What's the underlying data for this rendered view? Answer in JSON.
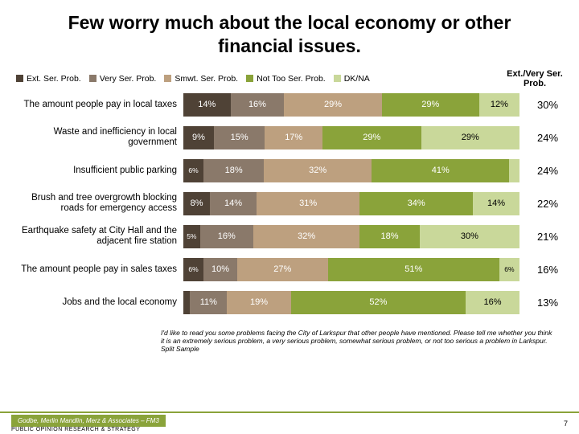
{
  "title": "Few worry much about the local economy or other financial issues.",
  "legend": [
    {
      "label": "Ext. Ser. Prob.",
      "color": "#4f4236"
    },
    {
      "label": "Very Ser. Prob.",
      "color": "#8a796a"
    },
    {
      "label": "Smwt. Ser. Prob.",
      "color": "#bda07f"
    },
    {
      "label": "Not Too Ser. Prob.",
      "color": "#8aa33a"
    },
    {
      "label": "DK/NA",
      "color": "#c9d89a"
    }
  ],
  "summary_header": "Ext./Very Ser. Prob.",
  "rows": [
    {
      "label": "The amount people pay in local taxes",
      "segments": [
        {
          "value": 14,
          "text": "14%",
          "color": "#4f4236",
          "show": true
        },
        {
          "value": 16,
          "text": "16%",
          "color": "#8a796a",
          "show": true
        },
        {
          "value": 29,
          "text": "29%",
          "color": "#bda07f",
          "show": true
        },
        {
          "value": 29,
          "text": "29%",
          "color": "#8aa33a",
          "show": true
        },
        {
          "value": 12,
          "text": "12%",
          "color": "#c9d89a",
          "show": true,
          "dark": true
        }
      ],
      "summary": "30%"
    },
    {
      "label": "Waste and inefficiency in local government",
      "segments": [
        {
          "value": 9,
          "text": "9%",
          "color": "#4f4236",
          "show": true
        },
        {
          "value": 15,
          "text": "15%",
          "color": "#8a796a",
          "show": true
        },
        {
          "value": 17,
          "text": "17%",
          "color": "#bda07f",
          "show": true
        },
        {
          "value": 29,
          "text": "29%",
          "color": "#8aa33a",
          "show": true
        },
        {
          "value": 29,
          "text": "29%",
          "color": "#c9d89a",
          "show": true,
          "dark": true
        }
      ],
      "summary": "24%"
    },
    {
      "label": "Insufficient public parking",
      "segments": [
        {
          "value": 6,
          "text": "6%",
          "color": "#4f4236",
          "show": true
        },
        {
          "value": 18,
          "text": "18%",
          "color": "#8a796a",
          "show": true
        },
        {
          "value": 32,
          "text": "32%",
          "color": "#bda07f",
          "show": true
        },
        {
          "value": 41,
          "text": "41%",
          "color": "#8aa33a",
          "show": true
        },
        {
          "value": 3,
          "text": "",
          "color": "#c9d89a",
          "show": false
        }
      ],
      "summary": "24%"
    },
    {
      "label": "Brush and tree overgrowth blocking roads for emergency access",
      "segments": [
        {
          "value": 8,
          "text": "8%",
          "color": "#4f4236",
          "show": true
        },
        {
          "value": 14,
          "text": "14%",
          "color": "#8a796a",
          "show": true
        },
        {
          "value": 31,
          "text": "31%",
          "color": "#bda07f",
          "show": true
        },
        {
          "value": 34,
          "text": "34%",
          "color": "#8aa33a",
          "show": true
        },
        {
          "value": 14,
          "text": "14%",
          "color": "#c9d89a",
          "show": true,
          "dark": true
        }
      ],
      "summary": "22%"
    },
    {
      "label": "Earthquake safety at City Hall and the adjacent fire station",
      "segments": [
        {
          "value": 5,
          "text": "5%",
          "color": "#4f4236",
          "show": true
        },
        {
          "value": 16,
          "text": "16%",
          "color": "#8a796a",
          "show": true
        },
        {
          "value": 32,
          "text": "32%",
          "color": "#bda07f",
          "show": true
        },
        {
          "value": 18,
          "text": "18%",
          "color": "#8aa33a",
          "show": true
        },
        {
          "value": 30,
          "text": "30%",
          "color": "#c9d89a",
          "show": true,
          "dark": true
        }
      ],
      "summary": "21%"
    },
    {
      "label": "The amount people pay in sales taxes",
      "segments": [
        {
          "value": 6,
          "text": "6%",
          "color": "#4f4236",
          "show": true
        },
        {
          "value": 10,
          "text": "10%",
          "color": "#8a796a",
          "show": true
        },
        {
          "value": 27,
          "text": "27%",
          "color": "#bda07f",
          "show": true
        },
        {
          "value": 51,
          "text": "51%",
          "color": "#8aa33a",
          "show": true
        },
        {
          "value": 6,
          "text": "6%",
          "color": "#c9d89a",
          "show": true,
          "dark": true
        }
      ],
      "summary": "16%"
    },
    {
      "label": "Jobs and the local economy",
      "segments": [
        {
          "value": 2,
          "text": "",
          "color": "#4f4236",
          "show": false
        },
        {
          "value": 11,
          "text": "11%",
          "color": "#8a796a",
          "show": true
        },
        {
          "value": 19,
          "text": "19%",
          "color": "#bda07f",
          "show": true
        },
        {
          "value": 52,
          "text": "52%",
          "color": "#8aa33a",
          "show": true
        },
        {
          "value": 16,
          "text": "16%",
          "color": "#c9d89a",
          "show": true,
          "dark": true
        }
      ],
      "summary": "13%"
    }
  ],
  "question_text": "I'd like to read you some problems facing the City of Larkspur that other people have mentioned. Please tell me whether you think it is an extremely serious problem, a very serious problem, somewhat serious problem, or not too serious a problem in Larkspur. Split Sample",
  "footer": {
    "brand": "Godbe, Merlin Mandlin, Merz & Associates – FM3",
    "subtitle": "PUBLIC OPINION RESEARCH & STRATEGY",
    "page": "7",
    "accent_color": "#8aa33a",
    "brand_bg": "#8aa33a"
  },
  "title_fontsize": 23
}
